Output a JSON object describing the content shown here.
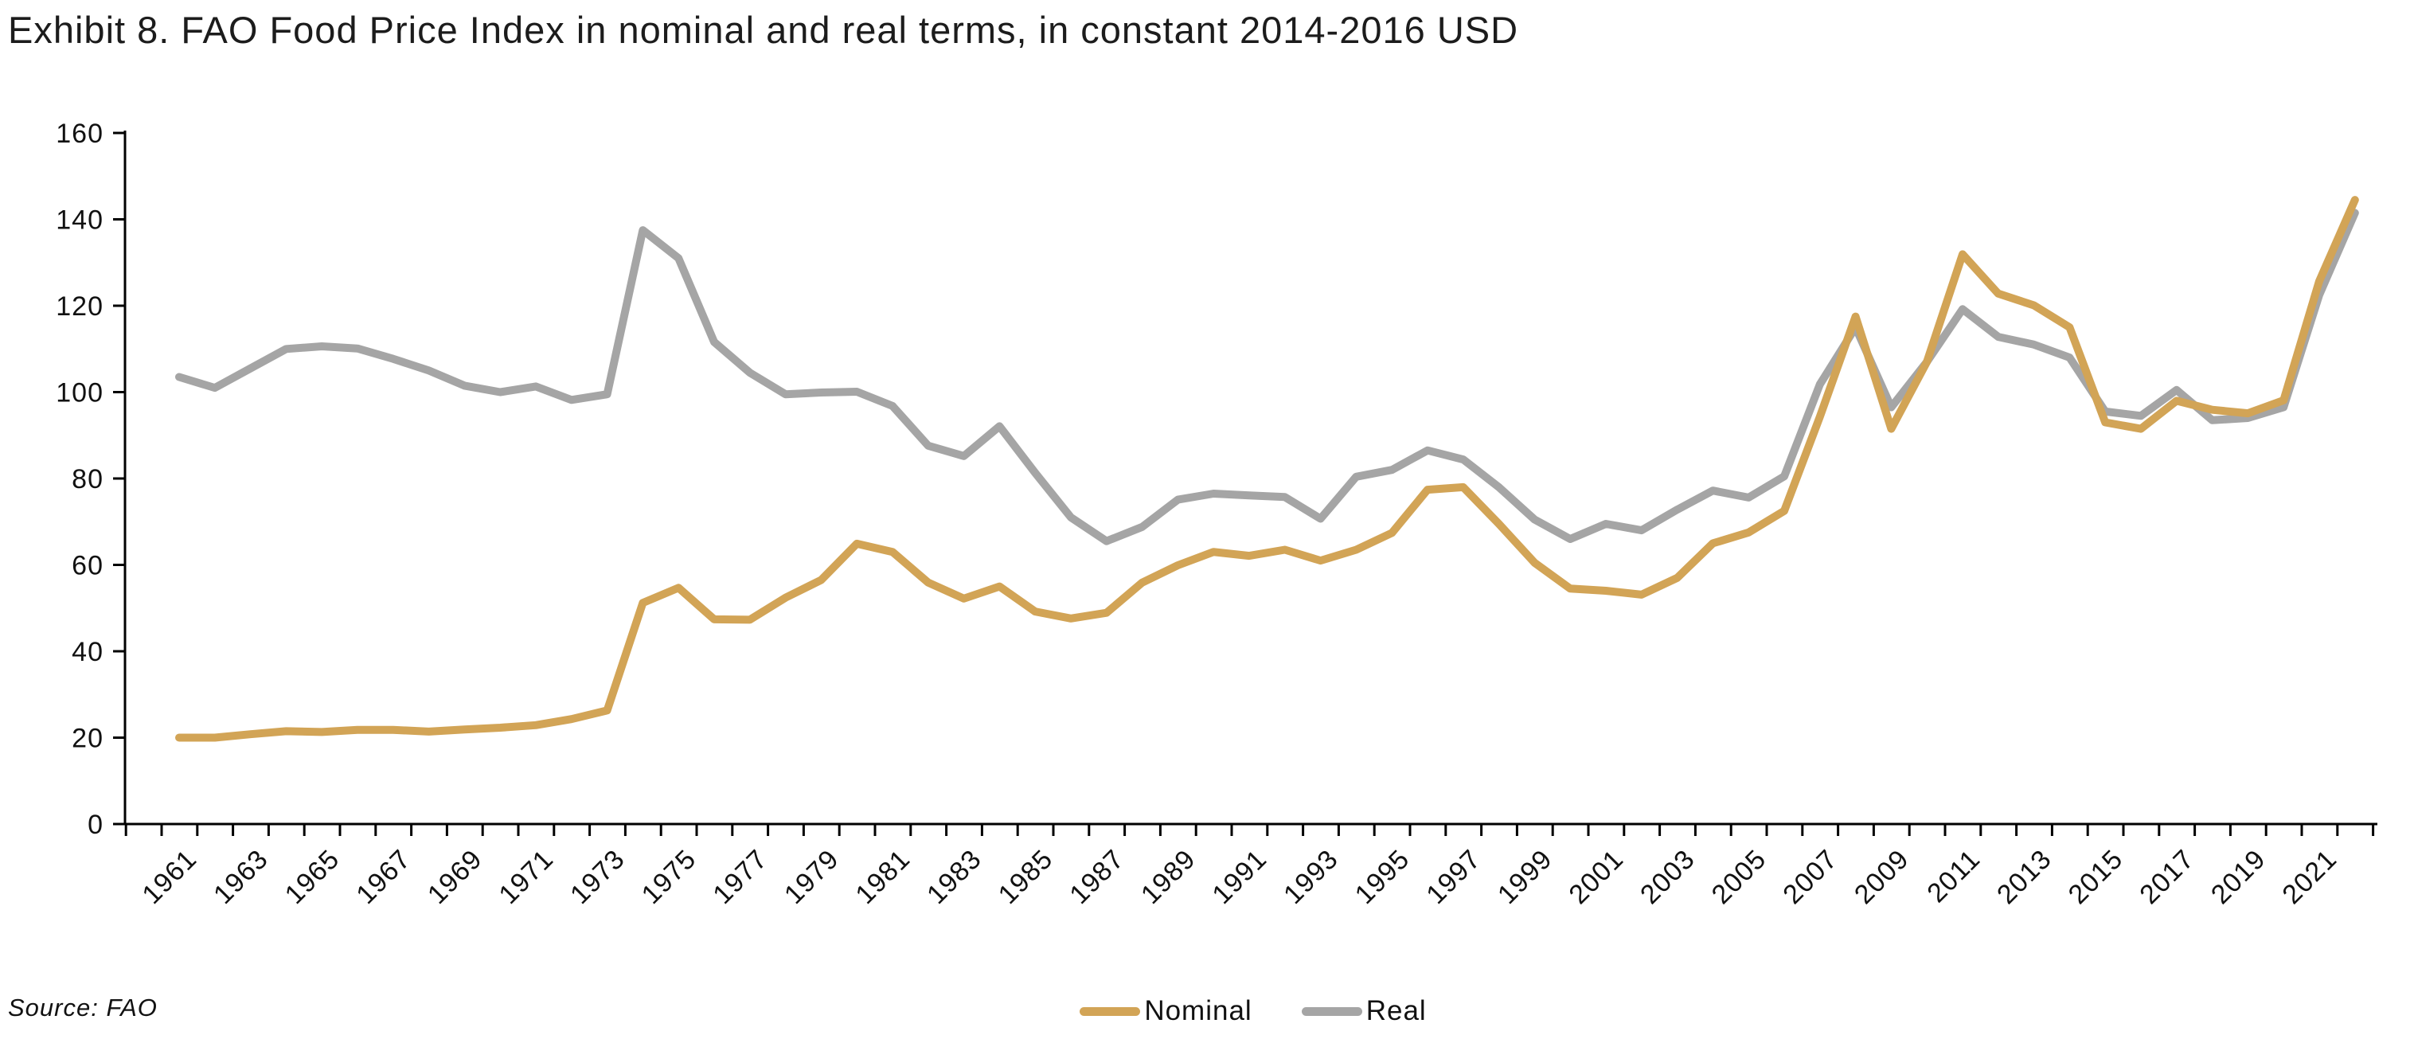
{
  "title": "Exhibit 8. FAO Food Price Index in nominal and real terms, in constant 2014-2016 USD",
  "source": "Source: FAO",
  "legend": [
    {
      "label": "Nominal",
      "color": "#D2A456"
    },
    {
      "label": "Real",
      "color": "#A5A5A5"
    }
  ],
  "chart_data": {
    "type": "line",
    "title": "Exhibit 8. FAO Food Price Index in nominal and real terms, in constant 2014-2016 USD",
    "xlabel": "",
    "ylabel": "",
    "ylim": [
      0,
      160
    ],
    "ytick_step": 20,
    "grid": false,
    "legend_position": "bottom",
    "axis_color": "#000000",
    "tick_label_color": "#111111",
    "x": [
      1961,
      1962,
      1963,
      1964,
      1965,
      1966,
      1967,
      1968,
      1969,
      1970,
      1971,
      1972,
      1973,
      1974,
      1975,
      1976,
      1977,
      1978,
      1979,
      1980,
      1981,
      1982,
      1983,
      1984,
      1985,
      1986,
      1987,
      1988,
      1989,
      1990,
      1991,
      1992,
      1993,
      1994,
      1995,
      1996,
      1997,
      1998,
      1999,
      2000,
      2001,
      2002,
      2003,
      2004,
      2005,
      2006,
      2007,
      2008,
      2009,
      2010,
      2011,
      2012,
      2013,
      2014,
      2015,
      2016,
      2017,
      2018,
      2019,
      2020,
      2021,
      2022
    ],
    "xtick_labels": [
      "1961",
      "1963",
      "1965",
      "1967",
      "1969",
      "1971",
      "1973",
      "1975",
      "1977",
      "1979",
      "1981",
      "1983",
      "1985",
      "1987",
      "1989",
      "1991",
      "1993",
      "1995",
      "1997",
      "1999",
      "2001",
      "2003",
      "2005",
      "2007",
      "2009",
      "2011",
      "2013",
      "2015",
      "2017",
      "2019",
      "2021"
    ],
    "series": [
      {
        "name": "Nominal",
        "color": "#D2A456",
        "values": [
          20.0,
          20.0,
          20.8,
          21.5,
          21.3,
          21.8,
          21.8,
          21.4,
          21.9,
          22.3,
          22.9,
          24.3,
          26.3,
          51.2,
          54.7,
          47.4,
          47.3,
          52.4,
          56.5,
          64.9,
          63.0,
          55.9,
          52.2,
          55.0,
          49.2,
          47.6,
          48.9,
          55.9,
          59.9,
          63.0,
          62.1,
          63.5,
          61.0,
          63.5,
          67.4,
          77.4,
          78.0,
          69.5,
          60.5,
          54.5,
          54.0,
          53.1,
          57.0,
          65.0,
          67.5,
          72.5,
          94.3,
          117.5,
          91.5,
          107.0,
          131.9,
          122.8,
          120.1,
          115.0,
          93.0,
          91.5,
          98.0,
          95.9,
          95.1,
          98.1,
          125.7,
          144.5
        ]
      },
      {
        "name": "Real",
        "color": "#A5A5A5",
        "values": [
          103.5,
          101.0,
          105.5,
          110.0,
          110.6,
          110.1,
          107.7,
          105.0,
          101.5,
          100.0,
          101.3,
          98.2,
          99.5,
          137.5,
          131.0,
          111.6,
          104.5,
          99.5,
          99.9,
          100.1,
          96.8,
          87.6,
          85.2,
          92.1,
          81.3,
          71.0,
          65.5,
          68.8,
          75.1,
          76.5,
          76.1,
          75.7,
          70.7,
          80.4,
          82.0,
          86.5,
          84.4,
          78.0,
          70.5,
          66.0,
          69.5,
          68.0,
          72.8,
          77.2,
          75.6,
          80.5,
          101.8,
          115.0,
          96.5,
          107.0,
          119.2,
          112.8,
          111.0,
          108.0,
          95.5,
          94.5,
          100.5,
          93.5,
          94.0,
          96.5,
          122.5,
          141.5
        ]
      }
    ]
  }
}
